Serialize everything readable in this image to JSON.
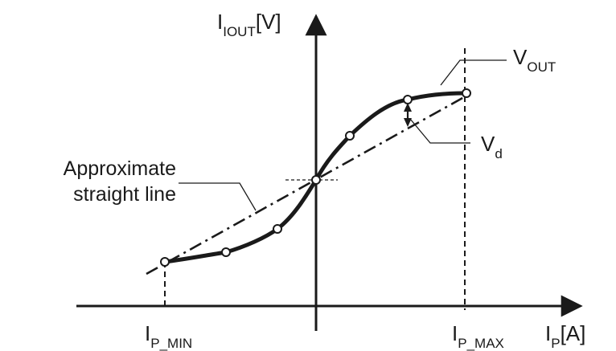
{
  "labels": {
    "y_axis_main": "I",
    "y_axis_sub": "IOUT",
    "y_axis_unit": "[V]",
    "x_axis_main": "I",
    "x_axis_sub": "P",
    "x_axis_unit": "[A]",
    "ip_min_main": "I",
    "ip_min_sub": "P_MIN",
    "ip_max_main": "I",
    "ip_max_sub": "P_MAX",
    "vout_main": "V",
    "vout_sub": "OUT",
    "vd_main": "V",
    "vd_sub": "d",
    "approx_line_1": "Approximate",
    "approx_line_2": "straight line"
  }
}
